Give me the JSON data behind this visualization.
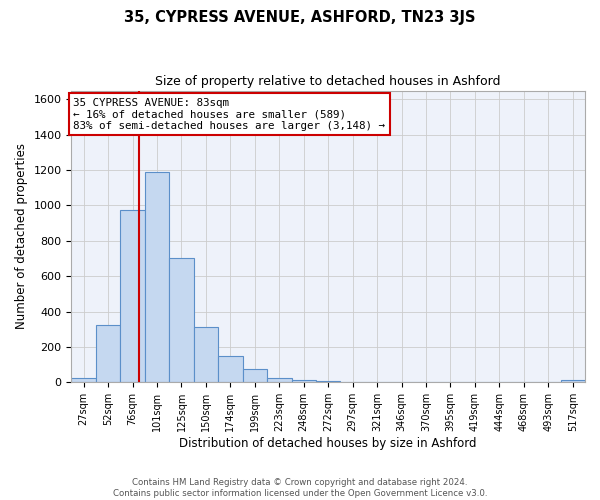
{
  "title": "35, CYPRESS AVENUE, ASHFORD, TN23 3JS",
  "subtitle": "Size of property relative to detached houses in Ashford",
  "xlabel": "Distribution of detached houses by size in Ashford",
  "ylabel": "Number of detached properties",
  "bin_labels": [
    "27sqm",
    "52sqm",
    "76sqm",
    "101sqm",
    "125sqm",
    "150sqm",
    "174sqm",
    "199sqm",
    "223sqm",
    "248sqm",
    "272sqm",
    "297sqm",
    "321sqm",
    "346sqm",
    "370sqm",
    "395sqm",
    "419sqm",
    "444sqm",
    "468sqm",
    "493sqm",
    "517sqm"
  ],
  "bar_values": [
    25,
    325,
    975,
    1190,
    700,
    310,
    150,
    75,
    25,
    15,
    5,
    0,
    0,
    0,
    0,
    0,
    0,
    0,
    0,
    0,
    15
  ],
  "bar_color": "#c5d8f0",
  "bar_edge_color": "#5b8fc9",
  "vline_pos": 2.28,
  "vline_color": "#cc0000",
  "annotation_text": "35 CYPRESS AVENUE: 83sqm\n← 16% of detached houses are smaller (589)\n83% of semi-detached houses are larger (3,148) →",
  "annotation_box_color": "#ffffff",
  "annotation_box_edge": "#cc0000",
  "ylim": [
    0,
    1650
  ],
  "yticks": [
    0,
    200,
    400,
    600,
    800,
    1000,
    1200,
    1400,
    1600
  ],
  "grid_color": "#cccccc",
  "bg_color": "#eef2fa",
  "footer_line1": "Contains HM Land Registry data © Crown copyright and database right 2024.",
  "footer_line2": "Contains public sector information licensed under the Open Government Licence v3.0."
}
